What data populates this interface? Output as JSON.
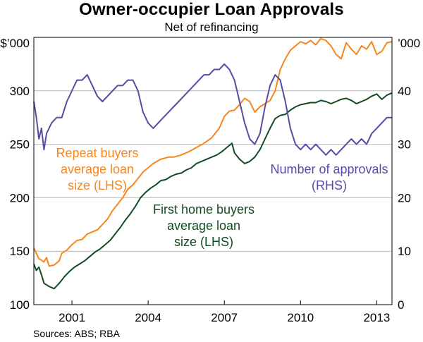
{
  "chart_data": {
    "type": "line",
    "title": "Owner-occupier Loan Approvals",
    "subtitle": "Net of refinancing",
    "y_left": {
      "unit": "$'000",
      "lim": [
        100,
        350
      ],
      "ticks": [
        100,
        150,
        200,
        250,
        300
      ]
    },
    "y_right": {
      "unit": "'000",
      "lim": [
        0,
        50
      ],
      "ticks": [
        0,
        10,
        20,
        30,
        40
      ]
    },
    "x": {
      "lim": [
        1999.5,
        2013.6
      ],
      "ticks": [
        2001,
        2004,
        2007,
        2010,
        2013
      ]
    },
    "grid": true,
    "series": [
      {
        "name": "Repeat buyers average loan size (LHS)",
        "axis": "left",
        "color": "#f7861e",
        "points": [
          [
            1999.5,
            153
          ],
          [
            1999.7,
            143
          ],
          [
            1999.9,
            140
          ],
          [
            2000.0,
            144
          ],
          [
            2000.1,
            136
          ],
          [
            2000.3,
            137
          ],
          [
            2000.5,
            141
          ],
          [
            2000.6,
            148
          ],
          [
            2000.8,
            151
          ],
          [
            2001.0,
            156
          ],
          [
            2001.2,
            160
          ],
          [
            2001.4,
            161
          ],
          [
            2001.6,
            166
          ],
          [
            2001.8,
            168
          ],
          [
            2002.0,
            170
          ],
          [
            2002.2,
            175
          ],
          [
            2002.4,
            180
          ],
          [
            2002.6,
            188
          ],
          [
            2002.8,
            194
          ],
          [
            2003.0,
            200
          ],
          [
            2003.2,
            208
          ],
          [
            2003.4,
            212
          ],
          [
            2003.6,
            218
          ],
          [
            2003.8,
            224
          ],
          [
            2004.0,
            228
          ],
          [
            2004.2,
            232
          ],
          [
            2004.5,
            236
          ],
          [
            2004.8,
            238
          ],
          [
            2005.0,
            238
          ],
          [
            2005.3,
            240
          ],
          [
            2005.6,
            243
          ],
          [
            2005.9,
            247
          ],
          [
            2006.2,
            251
          ],
          [
            2006.5,
            256
          ],
          [
            2006.8,
            265
          ],
          [
            2007.0,
            276
          ],
          [
            2007.2,
            281
          ],
          [
            2007.4,
            282
          ],
          [
            2007.6,
            287
          ],
          [
            2007.8,
            293
          ],
          [
            2008.0,
            290
          ],
          [
            2008.2,
            280
          ],
          [
            2008.4,
            285
          ],
          [
            2008.6,
            288
          ],
          [
            2008.8,
            291
          ],
          [
            2009.0,
            300
          ],
          [
            2009.2,
            320
          ],
          [
            2009.4,
            330
          ],
          [
            2009.6,
            338
          ],
          [
            2009.8,
            342
          ],
          [
            2010.0,
            346
          ],
          [
            2010.2,
            344
          ],
          [
            2010.4,
            347
          ],
          [
            2010.6,
            343
          ],
          [
            2010.8,
            349
          ],
          [
            2011.0,
            347
          ],
          [
            2011.2,
            342
          ],
          [
            2011.4,
            334
          ],
          [
            2011.6,
            330
          ],
          [
            2011.8,
            345
          ],
          [
            2012.0,
            339
          ],
          [
            2012.2,
            334
          ],
          [
            2012.4,
            342
          ],
          [
            2012.6,
            339
          ],
          [
            2012.8,
            346
          ],
          [
            2013.0,
            334
          ],
          [
            2013.2,
            337
          ],
          [
            2013.4,
            345
          ],
          [
            2013.6,
            346
          ]
        ]
      },
      {
        "name": "First home buyers average loan size (LHS)",
        "axis": "left",
        "color": "#134b22",
        "points": [
          [
            1999.5,
            138
          ],
          [
            1999.6,
            132
          ],
          [
            1999.7,
            135
          ],
          [
            1999.8,
            128
          ],
          [
            1999.9,
            120
          ],
          [
            2000.1,
            117
          ],
          [
            2000.3,
            115
          ],
          [
            2000.5,
            120
          ],
          [
            2000.7,
            126
          ],
          [
            2000.9,
            131
          ],
          [
            2001.1,
            135
          ],
          [
            2001.3,
            138
          ],
          [
            2001.5,
            141
          ],
          [
            2001.7,
            145
          ],
          [
            2001.9,
            149
          ],
          [
            2002.1,
            152
          ],
          [
            2002.3,
            156
          ],
          [
            2002.5,
            160
          ],
          [
            2002.7,
            166
          ],
          [
            2002.9,
            172
          ],
          [
            2003.1,
            179
          ],
          [
            2003.3,
            185
          ],
          [
            2003.5,
            192
          ],
          [
            2003.7,
            200
          ],
          [
            2003.9,
            205
          ],
          [
            2004.1,
            209
          ],
          [
            2004.3,
            212
          ],
          [
            2004.5,
            216
          ],
          [
            2004.7,
            217
          ],
          [
            2004.9,
            220
          ],
          [
            2005.1,
            222
          ],
          [
            2005.3,
            223
          ],
          [
            2005.5,
            226
          ],
          [
            2005.7,
            228
          ],
          [
            2005.9,
            232
          ],
          [
            2006.1,
            234
          ],
          [
            2006.3,
            236
          ],
          [
            2006.5,
            238
          ],
          [
            2006.7,
            240
          ],
          [
            2006.9,
            243
          ],
          [
            2007.1,
            247
          ],
          [
            2007.3,
            251
          ],
          [
            2007.4,
            242
          ],
          [
            2007.6,
            236
          ],
          [
            2007.8,
            232
          ],
          [
            2008.0,
            234
          ],
          [
            2008.2,
            238
          ],
          [
            2008.4,
            245
          ],
          [
            2008.6,
            255
          ],
          [
            2008.8,
            265
          ],
          [
            2009.0,
            274
          ],
          [
            2009.2,
            277
          ],
          [
            2009.4,
            278
          ],
          [
            2009.6,
            282
          ],
          [
            2009.8,
            285
          ],
          [
            2010.0,
            287
          ],
          [
            2010.2,
            288
          ],
          [
            2010.4,
            289
          ],
          [
            2010.6,
            289
          ],
          [
            2010.8,
            291
          ],
          [
            2011.0,
            290
          ],
          [
            2011.2,
            288
          ],
          [
            2011.4,
            290
          ],
          [
            2011.6,
            292
          ],
          [
            2011.8,
            293
          ],
          [
            2012.0,
            291
          ],
          [
            2012.2,
            288
          ],
          [
            2012.4,
            290
          ],
          [
            2012.6,
            292
          ],
          [
            2012.8,
            295
          ],
          [
            2013.0,
            297
          ],
          [
            2013.2,
            292
          ],
          [
            2013.4,
            296
          ],
          [
            2013.6,
            298
          ]
        ]
      },
      {
        "name": "Number of approvals (RHS)",
        "axis": "right",
        "color": "#5a4aa4",
        "points": [
          [
            1999.5,
            38
          ],
          [
            1999.6,
            35
          ],
          [
            1999.7,
            31
          ],
          [
            1999.8,
            33
          ],
          [
            1999.9,
            29
          ],
          [
            2000.0,
            32
          ],
          [
            2000.2,
            34
          ],
          [
            2000.4,
            35
          ],
          [
            2000.6,
            35
          ],
          [
            2000.8,
            38
          ],
          [
            2001.0,
            40
          ],
          [
            2001.2,
            42
          ],
          [
            2001.4,
            42
          ],
          [
            2001.6,
            43
          ],
          [
            2001.8,
            41
          ],
          [
            2002.0,
            39
          ],
          [
            2002.2,
            38
          ],
          [
            2002.4,
            39
          ],
          [
            2002.6,
            40
          ],
          [
            2002.8,
            41
          ],
          [
            2003.0,
            41
          ],
          [
            2003.2,
            42
          ],
          [
            2003.4,
            42
          ],
          [
            2003.6,
            40
          ],
          [
            2003.8,
            36
          ],
          [
            2004.0,
            34
          ],
          [
            2004.2,
            33
          ],
          [
            2004.4,
            34
          ],
          [
            2004.6,
            35
          ],
          [
            2004.8,
            36
          ],
          [
            2005.0,
            37
          ],
          [
            2005.2,
            38
          ],
          [
            2005.4,
            39
          ],
          [
            2005.6,
            40
          ],
          [
            2005.8,
            41
          ],
          [
            2006.0,
            42
          ],
          [
            2006.2,
            43
          ],
          [
            2006.4,
            43
          ],
          [
            2006.6,
            44
          ],
          [
            2006.8,
            44
          ],
          [
            2007.0,
            45
          ],
          [
            2007.2,
            44
          ],
          [
            2007.4,
            42
          ],
          [
            2007.6,
            38
          ],
          [
            2007.8,
            34
          ],
          [
            2008.0,
            31
          ],
          [
            2008.2,
            30
          ],
          [
            2008.4,
            32
          ],
          [
            2008.6,
            37
          ],
          [
            2008.8,
            41
          ],
          [
            2009.0,
            43
          ],
          [
            2009.2,
            42
          ],
          [
            2009.4,
            38
          ],
          [
            2009.6,
            33
          ],
          [
            2009.8,
            30
          ],
          [
            2010.0,
            29
          ],
          [
            2010.2,
            30
          ],
          [
            2010.4,
            29
          ],
          [
            2010.6,
            30
          ],
          [
            2010.8,
            29
          ],
          [
            2011.0,
            28
          ],
          [
            2011.2,
            29
          ],
          [
            2011.4,
            28
          ],
          [
            2011.6,
            29
          ],
          [
            2011.8,
            30
          ],
          [
            2012.0,
            31
          ],
          [
            2012.2,
            30
          ],
          [
            2012.4,
            31
          ],
          [
            2012.6,
            30
          ],
          [
            2012.8,
            32
          ],
          [
            2013.0,
            33
          ],
          [
            2013.2,
            34
          ],
          [
            2013.4,
            35
          ],
          [
            2013.6,
            35
          ]
        ]
      }
    ],
    "annotations": [
      {
        "series": 0,
        "lines": [
          "Repeat buyers",
          "average loan",
          "size (LHS)"
        ]
      },
      {
        "series": 1,
        "lines": [
          "First home buyers",
          "average loan",
          "size (LHS)"
        ]
      },
      {
        "series": 2,
        "lines": [
          "Number of approvals",
          "(RHS)"
        ]
      }
    ],
    "source": "Sources:   ABS; RBA"
  }
}
